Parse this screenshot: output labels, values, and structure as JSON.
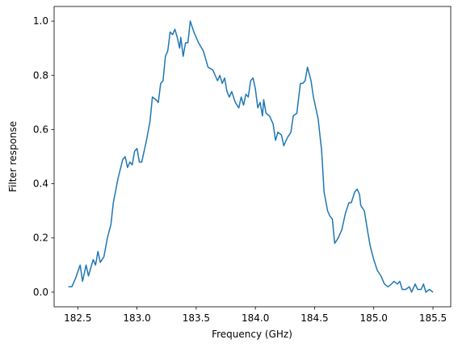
{
  "chart_data": {
    "type": "line",
    "x_label": "Frequency (GHz)",
    "y_label": "Filter response",
    "x": [
      182.42,
      182.45,
      182.48,
      182.52,
      182.54,
      182.57,
      182.59,
      182.63,
      182.65,
      182.67,
      182.69,
      182.72,
      182.75,
      182.78,
      182.8,
      182.84,
      182.88,
      182.9,
      182.92,
      182.94,
      182.96,
      182.98,
      183.0,
      183.02,
      183.04,
      183.08,
      183.11,
      183.13,
      183.16,
      183.18,
      183.2,
      183.22,
      183.24,
      183.26,
      183.28,
      183.3,
      183.32,
      183.34,
      183.36,
      183.37,
      183.39,
      183.41,
      183.43,
      183.45,
      183.48,
      183.52,
      183.56,
      183.6,
      183.64,
      183.68,
      183.7,
      183.72,
      183.74,
      183.76,
      183.78,
      183.8,
      183.83,
      183.86,
      183.88,
      183.9,
      183.92,
      183.94,
      183.96,
      183.98,
      184.0,
      184.02,
      184.04,
      184.06,
      184.07,
      184.09,
      184.12,
      184.15,
      184.17,
      184.19,
      184.22,
      184.24,
      184.27,
      184.3,
      184.32,
      184.35,
      184.38,
      184.4,
      184.42,
      184.44,
      184.47,
      184.49,
      184.53,
      184.56,
      184.58,
      184.61,
      184.63,
      184.65,
      184.67,
      184.7,
      184.73,
      184.76,
      184.79,
      184.81,
      184.84,
      184.86,
      184.88,
      184.89,
      184.92,
      184.95,
      184.97,
      185.0,
      185.03,
      185.06,
      185.09,
      185.12,
      185.15,
      185.17,
      185.2,
      185.22,
      185.24,
      185.27,
      185.3,
      185.32,
      185.35,
      185.37,
      185.4,
      185.42,
      185.44,
      185.47,
      185.5
    ],
    "series": [
      {
        "color": "#1f77b4",
        "values": [
          0.02,
          0.02,
          0.05,
          0.1,
          0.04,
          0.1,
          0.06,
          0.12,
          0.1,
          0.15,
          0.11,
          0.13,
          0.2,
          0.25,
          0.33,
          0.42,
          0.49,
          0.5,
          0.46,
          0.48,
          0.47,
          0.52,
          0.53,
          0.48,
          0.48,
          0.56,
          0.63,
          0.72,
          0.71,
          0.7,
          0.77,
          0.78,
          0.87,
          0.89,
          0.96,
          0.95,
          0.97,
          0.94,
          0.9,
          0.94,
          0.87,
          0.92,
          0.92,
          1.0,
          0.96,
          0.92,
          0.89,
          0.83,
          0.82,
          0.78,
          0.8,
          0.77,
          0.79,
          0.74,
          0.72,
          0.74,
          0.7,
          0.68,
          0.72,
          0.69,
          0.73,
          0.72,
          0.78,
          0.79,
          0.75,
          0.68,
          0.7,
          0.65,
          0.71,
          0.66,
          0.65,
          0.62,
          0.56,
          0.59,
          0.58,
          0.54,
          0.57,
          0.59,
          0.65,
          0.66,
          0.77,
          0.77,
          0.78,
          0.83,
          0.78,
          0.72,
          0.64,
          0.52,
          0.37,
          0.3,
          0.28,
          0.27,
          0.18,
          0.2,
          0.23,
          0.29,
          0.33,
          0.33,
          0.37,
          0.38,
          0.36,
          0.32,
          0.3,
          0.22,
          0.17,
          0.12,
          0.08,
          0.06,
          0.03,
          0.02,
          0.03,
          0.04,
          0.03,
          0.04,
          0.01,
          0.01,
          0.02,
          0.0,
          0.03,
          0.01,
          0.01,
          0.03,
          0.0,
          0.01,
          0.0
        ]
      }
    ],
    "xlim": [
      182.3,
      185.65
    ],
    "xticks": [
      182.5,
      {
        "value": 183.0,
        "label": "183.0"
      },
      183.5,
      {
        "value": 184.0,
        "label": "184.0"
      },
      184.5,
      {
        "value": 185.0,
        "label": "185.0"
      },
      185.5
    ],
    "ylim": [
      -0.054,
      1.054
    ],
    "yticks": [
      {
        "value": 0.0,
        "label": "0.0"
      },
      0.2,
      0.4,
      0.6,
      0.8,
      {
        "value": 1.0,
        "label": "1.0"
      }
    ],
    "grid": false
  }
}
